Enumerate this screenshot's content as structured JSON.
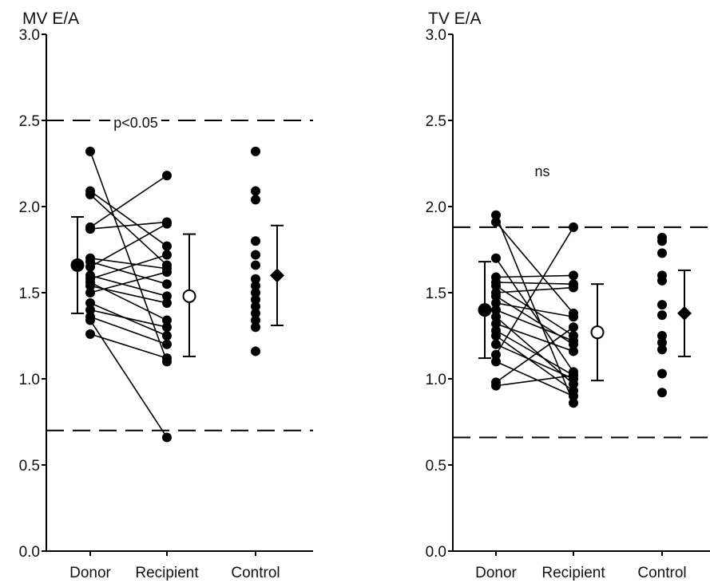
{
  "chart_data": [
    {
      "type": "scatter",
      "title": "MV E/A",
      "categories": [
        "Donor",
        "Recipient",
        "Control"
      ],
      "ylim": [
        0,
        3
      ],
      "yticks": [
        "0.0",
        "0.5",
        "1.0",
        "1.5",
        "2.0",
        "2.5",
        "3.0"
      ],
      "grid": false,
      "annotation": "p<0.05",
      "reference_lines": [
        2.5,
        0.7
      ],
      "paired_lines": [
        [
          2.32,
          1.1
        ],
        [
          2.09,
          1.77
        ],
        [
          2.07,
          1.66
        ],
        [
          1.88,
          2.18
        ],
        [
          1.87,
          1.91
        ],
        [
          1.7,
          1.64
        ],
        [
          1.68,
          1.55
        ],
        [
          1.65,
          1.9
        ],
        [
          1.6,
          1.48
        ],
        [
          1.58,
          1.72
        ],
        [
          1.56,
          1.34
        ],
        [
          1.54,
          1.44
        ],
        [
          1.5,
          1.62
        ],
        [
          1.44,
          1.25
        ],
        [
          1.4,
          1.3
        ],
        [
          1.36,
          1.2
        ],
        [
          1.34,
          0.66
        ],
        [
          1.26,
          1.12
        ]
      ],
      "control_values": [
        2.32,
        2.09,
        2.04,
        1.8,
        1.72,
        1.66,
        1.58,
        1.54,
        1.5,
        1.46,
        1.42,
        1.38,
        1.34,
        1.3,
        1.16
      ],
      "summary": [
        {
          "group": "Donor",
          "mean": 1.66,
          "low": 1.38,
          "high": 1.94,
          "marker": "filled-circle"
        },
        {
          "group": "Recipient",
          "mean": 1.48,
          "low": 1.13,
          "high": 1.84,
          "marker": "open-circle"
        },
        {
          "group": "Control",
          "mean": 1.6,
          "low": 1.31,
          "high": 1.89,
          "marker": "filled-diamond"
        }
      ]
    },
    {
      "type": "scatter",
      "title": "TV E/A",
      "categories": [
        "Donor",
        "Recipient",
        "Control"
      ],
      "ylim": [
        0,
        3
      ],
      "yticks": [
        "0.0",
        "0.5",
        "1.0",
        "1.5",
        "2.0",
        "2.5",
        "3.0"
      ],
      "grid": false,
      "annotation": "ns",
      "reference_lines": [
        1.88,
        0.66
      ],
      "paired_lines": [
        [
          1.95,
          0.86
        ],
        [
          1.91,
          1.38
        ],
        [
          1.7,
          1.04
        ],
        [
          1.59,
          1.6
        ],
        [
          1.56,
          1.55
        ],
        [
          1.54,
          1.25
        ],
        [
          1.5,
          1.53
        ],
        [
          1.48,
          1.2
        ],
        [
          1.44,
          1.36
        ],
        [
          1.4,
          1.22
        ],
        [
          1.36,
          0.97
        ],
        [
          1.32,
          1.16
        ],
        [
          1.28,
          1.02
        ],
        [
          1.25,
          0.93
        ],
        [
          1.2,
          1.0
        ],
        [
          1.14,
          1.88
        ],
        [
          1.1,
          0.9
        ],
        [
          0.98,
          1.3
        ],
        [
          0.96,
          1.02
        ]
      ],
      "control_values": [
        1.82,
        1.8,
        1.73,
        1.6,
        1.57,
        1.43,
        1.37,
        1.25,
        1.21,
        1.17,
        1.03,
        0.92
      ],
      "summary": [
        {
          "group": "Donor",
          "mean": 1.4,
          "low": 1.12,
          "high": 1.68,
          "marker": "filled-circle"
        },
        {
          "group": "Recipient",
          "mean": 1.27,
          "low": 0.99,
          "high": 1.55,
          "marker": "open-circle"
        },
        {
          "group": "Control",
          "mean": 1.38,
          "low": 1.13,
          "high": 1.63,
          "marker": "filled-diamond"
        }
      ]
    }
  ]
}
